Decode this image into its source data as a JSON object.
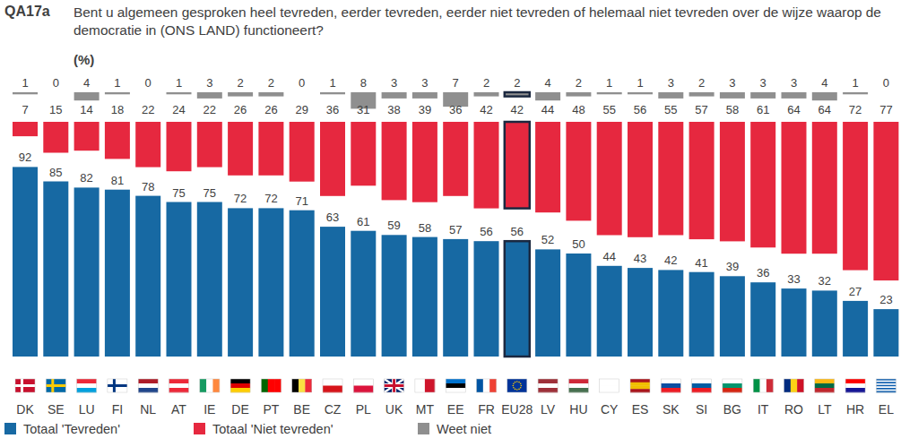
{
  "chart_data": {
    "type": "bar",
    "title": "QA17a",
    "subtitle": "Bent u algemeen gesproken heel tevreden, eerder tevreden, eerder niet tevreden of helemaal niet tevreden over de wijze waarop de democratie in (ONS LAND) functioneert?",
    "y_label": "(%)",
    "categories": [
      "DK",
      "SE",
      "LU",
      "FI",
      "NL",
      "AT",
      "IE",
      "DE",
      "PT",
      "BE",
      "CZ",
      "PL",
      "UK",
      "MT",
      "EE",
      "FR",
      "EU28",
      "LV",
      "HU",
      "CY",
      "ES",
      "SK",
      "SI",
      "BG",
      "IT",
      "RO",
      "LT",
      "HR",
      "EL"
    ],
    "series": [
      {
        "name": "Totaal 'Tevreden'",
        "color": "#1769a3",
        "values": [
          92,
          85,
          82,
          81,
          78,
          75,
          75,
          72,
          72,
          71,
          63,
          61,
          59,
          58,
          57,
          56,
          56,
          52,
          50,
          44,
          43,
          42,
          41,
          39,
          36,
          33,
          32,
          27,
          23
        ]
      },
      {
        "name": "Totaal 'Niet tevreden'",
        "color": "#e6283f",
        "values": [
          7,
          15,
          14,
          18,
          22,
          24,
          22,
          26,
          26,
          29,
          36,
          31,
          38,
          39,
          36,
          42,
          42,
          44,
          48,
          55,
          56,
          55,
          57,
          58,
          61,
          64,
          64,
          72,
          77
        ]
      },
      {
        "name": "Weet niet",
        "color": "#8f8f8f",
        "values": [
          1,
          0,
          4,
          1,
          0,
          1,
          3,
          2,
          2,
          0,
          1,
          8,
          3,
          3,
          7,
          2,
          2,
          4,
          2,
          1,
          1,
          3,
          2,
          3,
          3,
          3,
          4,
          1,
          0
        ]
      }
    ],
    "ylim": [
      0,
      100
    ],
    "stacked": true,
    "data_labels": true,
    "tick_labels": "x",
    "legend": "bottom"
  }
}
